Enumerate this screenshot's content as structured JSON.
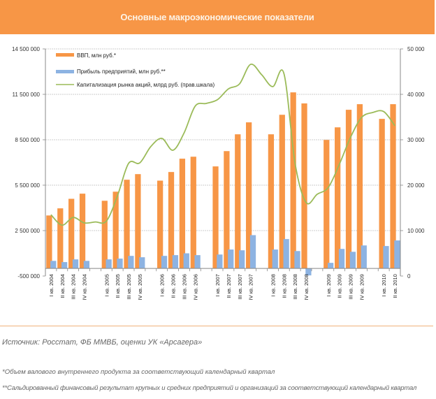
{
  "header": {
    "title": "Основные макроэкономические показатели"
  },
  "chart_data": {
    "type": "bar",
    "title": "Основные макроэкономические показатели",
    "categories": [
      "I кв. 2004",
      "II кв. 2004",
      "III кв. 2004",
      "IV кв. 2004",
      "",
      "I кв. 2005",
      "II кв. 2005",
      "III кв. 2005",
      "IV кв. 2005",
      "",
      "I кв. 2006",
      "II кв. 2006",
      "III кв. 2006",
      "IV кв. 2006",
      "",
      "I кв. 2007",
      "II кв. 2007",
      "III кв. 2007",
      "IV кв. 2007",
      "",
      "I кв. 2008",
      "II кв. 2008",
      "III кв. 2008",
      "IV кв. 2008",
      "",
      "I кв. 2009",
      "II кв. 2009",
      "III кв. 2009",
      "IV кв. 2009",
      "",
      "I кв. 2010",
      "II кв. 2010"
    ],
    "series": [
      {
        "name": "ВВП, млн руб.*",
        "type": "bar",
        "axis": "left",
        "color": "#f79646",
        "values": [
          3500000,
          3970000,
          4600000,
          4940000,
          null,
          4470000,
          5070000,
          5860000,
          6230000,
          null,
          5800000,
          6370000,
          7250000,
          7380000,
          null,
          6740000,
          7750000,
          8860000,
          9650000,
          null,
          8860000,
          10150000,
          11630000,
          10900000,
          null,
          8490000,
          9320000,
          10480000,
          10850000,
          null,
          9880000,
          10850000
        ]
      },
      {
        "name": "Прибыль предприятий,  млн руб.**",
        "type": "bar",
        "axis": "left",
        "color": "#8db3e2",
        "values": [
          500000,
          420000,
          600000,
          500000,
          null,
          600000,
          650000,
          830000,
          740000,
          null,
          830000,
          880000,
          1000000,
          880000,
          null,
          920000,
          1250000,
          1200000,
          2200000,
          null,
          1250000,
          1940000,
          1150000,
          -460000,
          null,
          370000,
          1290000,
          1100000,
          1520000,
          null,
          1480000,
          1850000
        ]
      },
      {
        "name": "Капитализация  рынка акций, млрд руб. (прав.шкала)",
        "type": "line",
        "axis": "right",
        "color": "#9bbb59",
        "values": [
          13500,
          11200,
          12900,
          11700,
          11900,
          12100,
          17700,
          24800,
          24900,
          28500,
          30300,
          27700,
          31500,
          37400,
          38000,
          38800,
          41200,
          42300,
          46600,
          44300,
          41700,
          44600,
          24900,
          16200,
          18000,
          19500,
          24600,
          30500,
          34900,
          36000,
          36200,
          33100
        ]
      }
    ],
    "left_axis": {
      "ticks": [
        "14 500 000",
        "11 500 000",
        "8 500 000",
        "5 500 000",
        "2 500 000",
        "-500 000"
      ],
      "ylim": [
        -500000,
        14500000
      ],
      "step": 3000000
    },
    "right_axis": {
      "ticks": [
        "50 000",
        "40 000",
        "30 000",
        "20 000",
        "10 000",
        "0"
      ],
      "ylim": [
        0,
        50000
      ],
      "step": 10000
    },
    "grid": true,
    "legend": "top-left"
  },
  "footer": {
    "source": "Источник: Росстат, ФБ ММВБ, оценки УК «Арсагера»",
    "note1": "*Объем валового внутреннего продукта за соответствующий календарный квартал",
    "note2": "**Сальдированный финансовый результат крупных и средних предприятий и организаций  за соответствующий календарный квартал"
  }
}
